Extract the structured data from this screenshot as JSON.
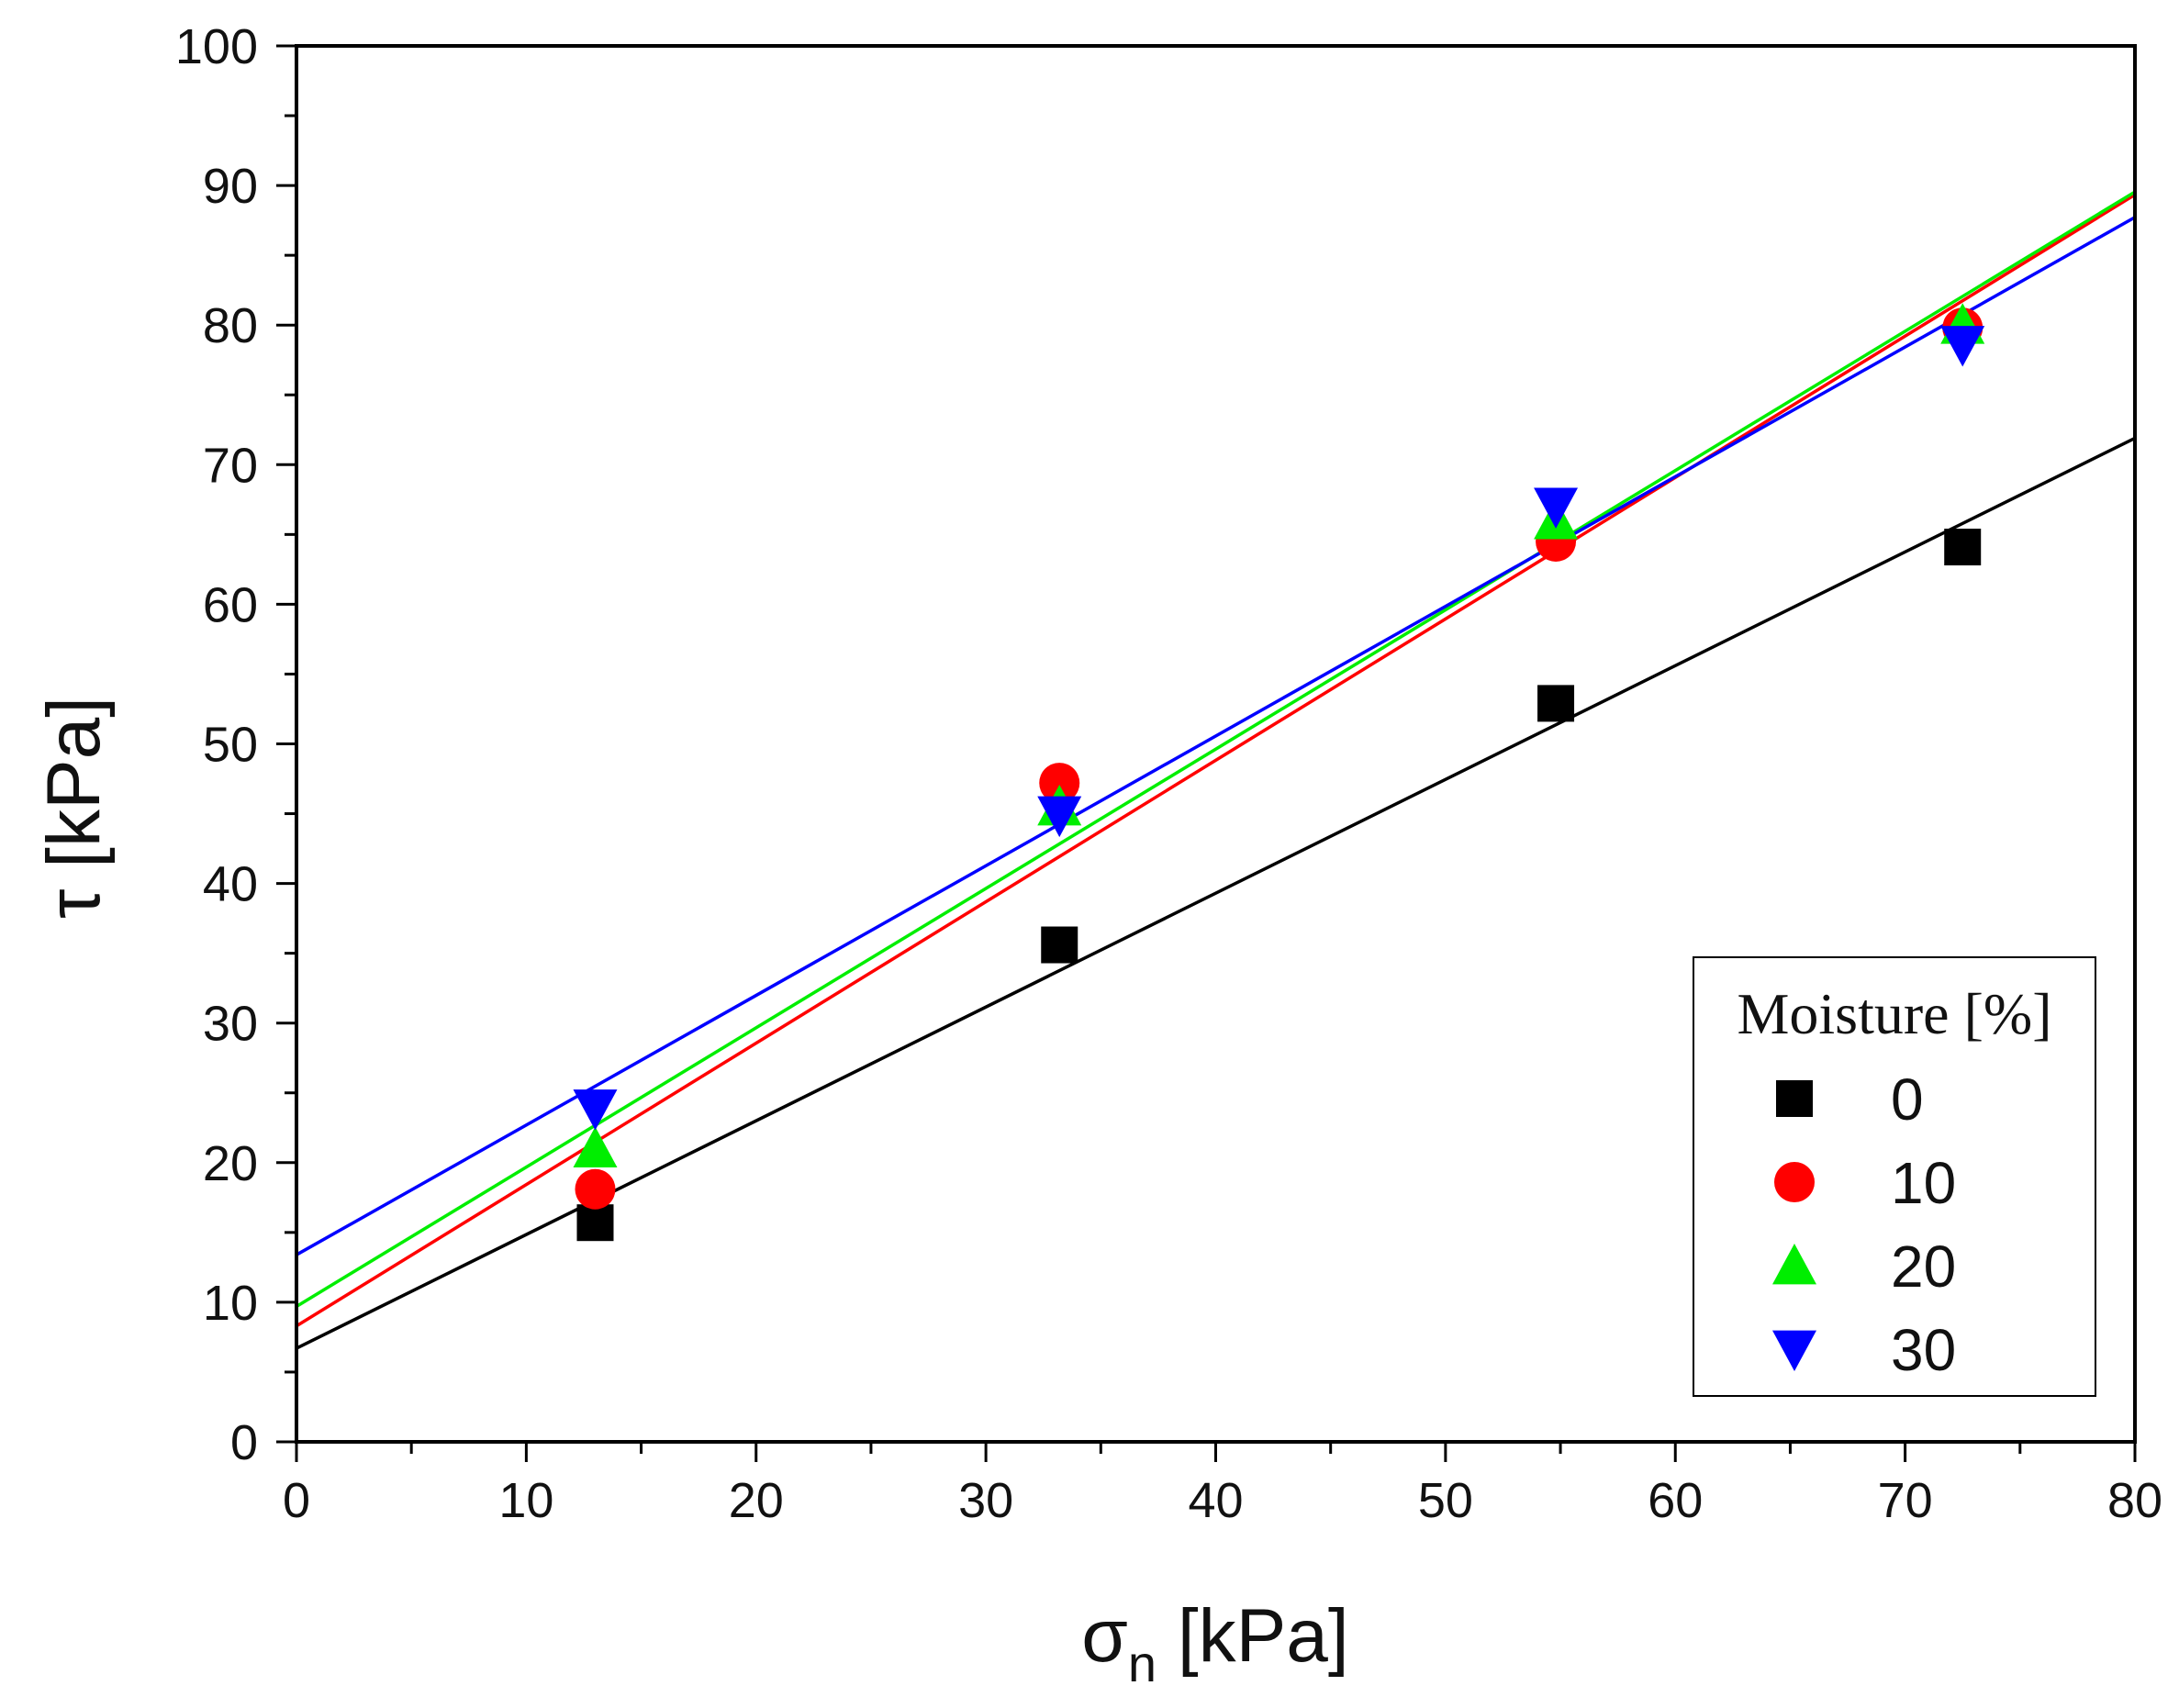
{
  "chart_data": {
    "type": "scatter",
    "title": "",
    "x_label": {
      "symbol": "σ",
      "subscript": "n",
      "unit": " [kPa]"
    },
    "y_label": {
      "symbol": "τ",
      "unit": " [kPa]"
    },
    "xlim": [
      0,
      80
    ],
    "ylim": [
      0,
      100
    ],
    "x_ticks": [
      0,
      10,
      20,
      30,
      40,
      50,
      60,
      70,
      80
    ],
    "y_ticks": [
      0,
      10,
      20,
      30,
      40,
      50,
      60,
      70,
      80,
      90,
      100
    ],
    "x_minor_step": 5,
    "y_minor_step": 5,
    "grid": false,
    "legend": {
      "title": "Moisture [%]",
      "position": "bottom-right"
    },
    "series": [
      {
        "name": "0",
        "color": "#000000",
        "marker": "square",
        "x": [
          13.0,
          33.2,
          54.8,
          72.5
        ],
        "y": [
          15.7,
          35.6,
          52.9,
          64.1
        ],
        "fit": {
          "intercept": 6.7,
          "slope": 0.815
        }
      },
      {
        "name": "10",
        "color": "#ff0000",
        "marker": "circle",
        "x": [
          13.0,
          33.2,
          54.8,
          72.5
        ],
        "y": [
          18.1,
          47.2,
          64.5,
          79.8
        ],
        "fit": {
          "intercept": 8.3,
          "slope": 1.013
        }
      },
      {
        "name": "20",
        "color": "#00ee00",
        "marker": "triangle-up",
        "x": [
          13.0,
          33.2,
          54.8,
          72.5
        ],
        "y": [
          21.0,
          45.5,
          66.0,
          80.0
        ],
        "fit": {
          "intercept": 9.7,
          "slope": 0.998
        }
      },
      {
        "name": "30",
        "color": "#0000ff",
        "marker": "triangle-down",
        "x": [
          13.0,
          33.2,
          54.8,
          72.5
        ],
        "y": [
          23.9,
          44.9,
          67.0,
          78.6
        ],
        "fit": {
          "intercept": 13.4,
          "slope": 0.929
        }
      }
    ]
  }
}
